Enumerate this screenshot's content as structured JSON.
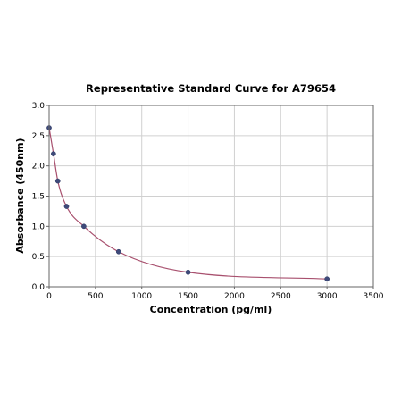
{
  "chart_data": {
    "type": "scatter",
    "title": "Representative Standard Curve for A79654",
    "xlabel": "Concentration (pg/ml)",
    "ylabel": "Absorbance (450nm)",
    "xlim": [
      0,
      3500
    ],
    "ylim": [
      0,
      3.0
    ],
    "xticks": [
      "0",
      "500",
      "1000",
      "1500",
      "2000",
      "2500",
      "3000",
      "3500"
    ],
    "yticks": [
      "0.0",
      "0.5",
      "1.0",
      "1.5",
      "2.0",
      "2.5",
      "3.0"
    ],
    "grid": true,
    "series": [
      {
        "x": [
          0,
          47,
          94,
          188,
          375,
          750,
          1500,
          3000
        ],
        "y": [
          2.63,
          2.2,
          1.75,
          1.33,
          1.0,
          0.58,
          0.24,
          0.13
        ],
        "fit": "smooth curve",
        "marker_color": "#3e4a7a",
        "line_color": "#a8506e"
      }
    ]
  }
}
